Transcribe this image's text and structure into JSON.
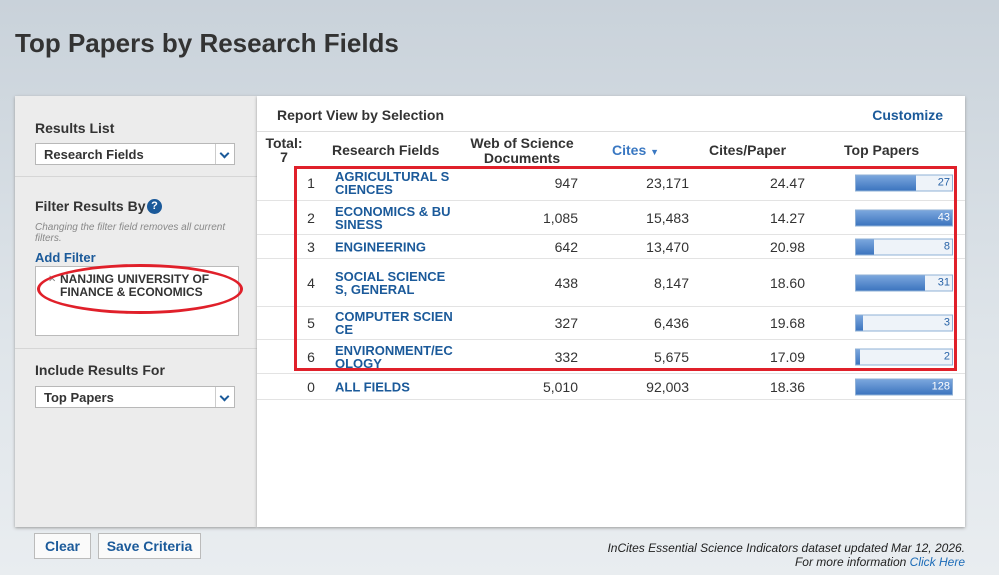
{
  "header": {
    "title": "Top Papers by Research Fields"
  },
  "sidebar": {
    "results_list_label": "Results List",
    "results_list_value": "Research Fields",
    "filter_label": "Filter Results By",
    "filter_note": "Changing the filter field removes all current filters.",
    "add_filter": "Add Filter",
    "filter_chip": "NANJING UNIVERSITY OF FINANCE & ECONOMICS",
    "include_label": "Include Results For",
    "include_value": "Top Papers",
    "buttons": [
      "Clear",
      "Save Criteria"
    ]
  },
  "report": {
    "title": "Report View by Selection",
    "customize": "Customize",
    "total_label": "Total:",
    "total_count": 7,
    "columns": [
      "Research Fields",
      "Web of Science Documents",
      "Cites",
      "Cites/Paper",
      "Top Papers"
    ],
    "rows": [
      [
        1,
        "AGRICULTURAL SCIENCES",
        "947",
        "23,171",
        "24.47",
        27
      ],
      [
        2,
        "ECONOMICS & BUSINESS",
        "1,085",
        "15,483",
        "14.27",
        43
      ],
      [
        3,
        "ENGINEERING",
        "642",
        "13,470",
        "20.98",
        8
      ],
      [
        4,
        "SOCIAL SCIENCES, GENERAL",
        "438",
        "8,147",
        "18.60",
        31
      ],
      [
        5,
        "COMPUTER SCIENCE",
        "327",
        "6,436",
        "19.68",
        3
      ],
      [
        6,
        "ENVIRONMENT/ECOLOGY",
        "332",
        "5,675",
        "17.09",
        2
      ]
    ],
    "total_row": [
      0,
      "ALL FIELDS",
      "5,010",
      "92,003",
      "18.36",
      128
    ]
  },
  "footer": {
    "note": "InCites Essential Science Indicators dataset updated Mar 12, 2026.",
    "more": "For more information",
    "link": "Click Here"
  }
}
